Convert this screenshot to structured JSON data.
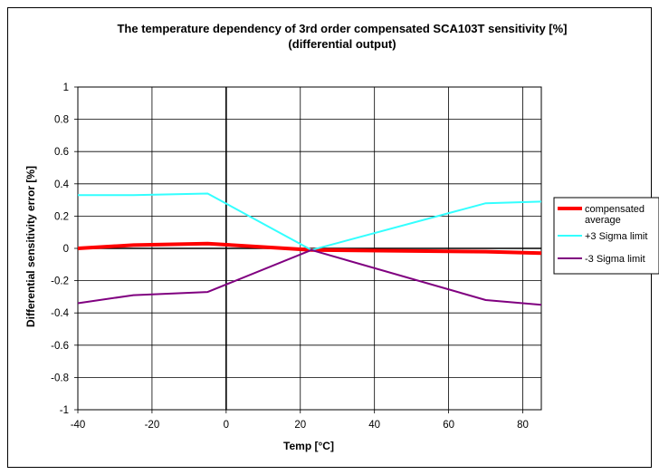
{
  "chart_data": {
    "type": "line",
    "title_line1": "The temperature dependency of 3rd order compensated SCA103T sensitivity [%]",
    "title_line2": "(differential output)",
    "xlabel": "Temp [°C]",
    "ylabel": "Differential sensitivity error [%]",
    "xlim": [
      -40,
      85
    ],
    "ylim": [
      -1,
      1
    ],
    "xticks": [
      -40,
      -20,
      0,
      20,
      40,
      60,
      80
    ],
    "yticks": [
      1,
      0.8,
      0.6,
      0.4,
      0.2,
      0,
      -0.2,
      -0.4,
      -0.6,
      -0.8,
      -1
    ],
    "xtick_labels": [
      "-40",
      "-20",
      "0",
      "20",
      "40",
      "60",
      "80"
    ],
    "ytick_labels": [
      "1",
      "0.8",
      "0.6",
      "0.4",
      "0.2",
      "0",
      "-0.2",
      "-0.4",
      "-0.6",
      "-0.8",
      "-1"
    ],
    "grid": true,
    "legend_position": "right",
    "series": [
      {
        "name": "compensated average",
        "legend_line1": "compensated",
        "legend_line2": "average",
        "color": "#ff0000",
        "x": [
          -40,
          -25,
          -5,
          23,
          70,
          85
        ],
        "y": [
          0.0,
          0.02,
          0.03,
          -0.01,
          -0.02,
          -0.03
        ]
      },
      {
        "name": "+3 Sigma limit",
        "legend_line1": "+3 Sigma limit",
        "color": "#33ffff",
        "x": [
          -40,
          -25,
          -5,
          23,
          70,
          85
        ],
        "y": [
          0.33,
          0.33,
          0.34,
          -0.01,
          0.28,
          0.29
        ]
      },
      {
        "name": "-3 Sigma limit",
        "legend_line1": "-3 Sigma limit",
        "color": "#800080",
        "x": [
          -40,
          -25,
          -5,
          23,
          70,
          85
        ],
        "y": [
          -0.34,
          -0.29,
          -0.27,
          -0.01,
          -0.32,
          -0.35
        ]
      }
    ]
  }
}
